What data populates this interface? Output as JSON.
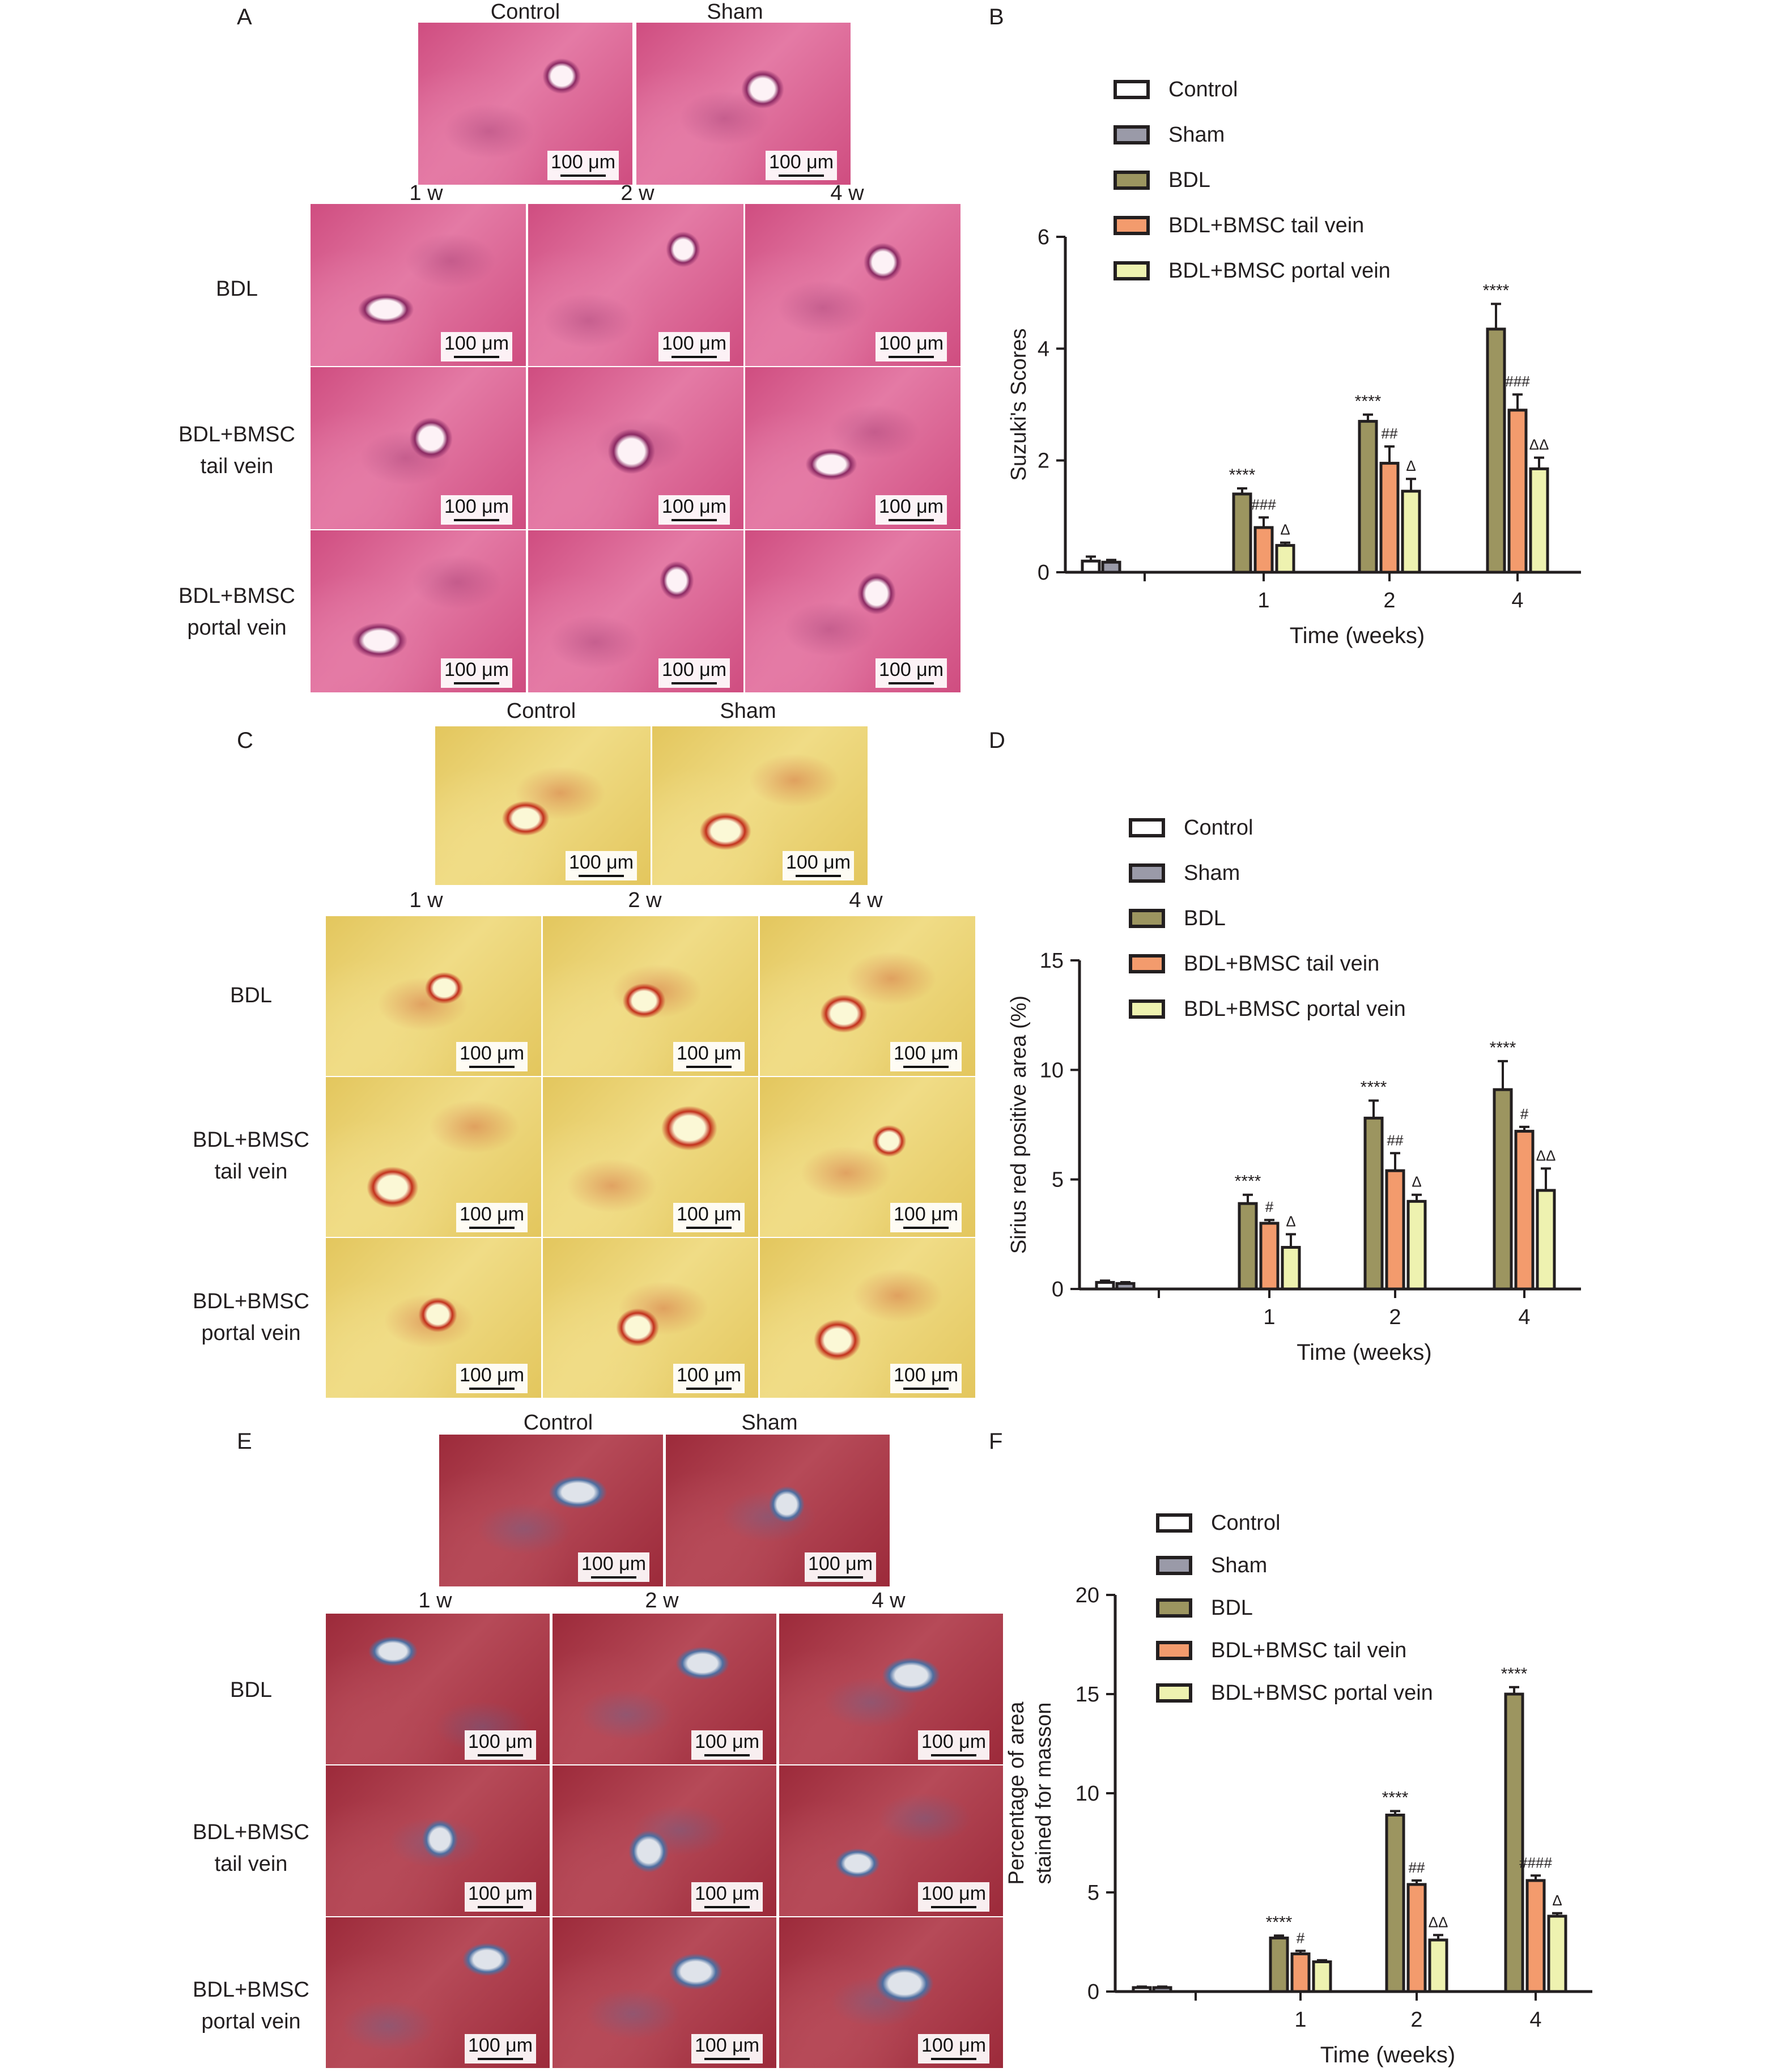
{
  "panel_letters": [
    "A",
    "B",
    "C",
    "D",
    "E",
    "F"
  ],
  "micrograph_panels": [
    {
      "letter": "A",
      "top_labels": [
        "Control",
        "Sham"
      ],
      "column_labels": [
        "1 w",
        "2 w",
        "4 w"
      ],
      "row_labels": [
        [
          "BDL"
        ],
        [
          "BDL+BMSC",
          "tail vein"
        ],
        [
          "BDL+BMSC",
          "portal vein"
        ]
      ],
      "scale_label": "100 μm",
      "stain_colors": {
        "base": "#cf4d80",
        "light": "#e47aa5",
        "dark": "#8b2a63",
        "lumen": "#fdf2f6"
      }
    },
    {
      "letter": "C",
      "top_labels": [
        "Control",
        "Sham"
      ],
      "column_labels": [
        "1 w",
        "2 w",
        "4 w"
      ],
      "row_labels": [
        [
          "BDL"
        ],
        [
          "BDL+BMSC",
          "tail vein"
        ],
        [
          "BDL+BMSC",
          "portal vein"
        ]
      ],
      "scale_label": "100 μm",
      "stain_colors": {
        "base": "#e3c65d",
        "light": "#f0dc86",
        "dark": "#c2301c",
        "lumen": "#fbf8d6"
      }
    },
    {
      "letter": "E",
      "top_labels": [
        "Control",
        "Sham"
      ],
      "column_labels": [
        "1 w",
        "2 w",
        "4 w"
      ],
      "row_labels": [
        [
          "BDL"
        ],
        [
          "BDL+BMSC",
          "tail vein"
        ],
        [
          "BDL+BMSC",
          "portal vein"
        ]
      ],
      "scale_label": "100 μm",
      "stain_colors": {
        "base": "#9c2a3a",
        "light": "#b64a58",
        "dark": "#4d6ea0",
        "lumen": "#dfe3ea"
      }
    }
  ],
  "legend_labels": [
    "Control",
    "Sham",
    "BDL",
    "BDL+BMSC tail vein",
    "BDL+BMSC portal vein"
  ],
  "series_colors": [
    "#ffffff",
    "#9a9aa8",
    "#9c9560",
    "#f39b6d",
    "#eef2b0"
  ],
  "chart_data": [
    {
      "type": "bar",
      "panel": "B",
      "ylabel": "Suzuki's Scores",
      "xlabel": "Time (weeks)",
      "ylim": [
        0,
        6
      ],
      "yticks": [
        0,
        2,
        4,
        6
      ],
      "categories": [
        "1",
        "2",
        "4"
      ],
      "baseline": {
        "series": [
          "Control",
          "Sham"
        ],
        "values": [
          0.2,
          0.18
        ],
        "errors": [
          0.08,
          0.04
        ]
      },
      "series": [
        {
          "name": "BDL",
          "values": [
            1.4,
            2.7,
            4.35
          ],
          "errors": [
            0.1,
            0.12,
            0.45
          ],
          "marks": [
            "****",
            "****",
            "****"
          ]
        },
        {
          "name": "BDL+BMSC tail vein",
          "values": [
            0.8,
            1.95,
            2.9
          ],
          "errors": [
            0.18,
            0.3,
            0.28
          ],
          "marks": [
            "###",
            "##",
            "###"
          ]
        },
        {
          "name": "BDL+BMSC portal vein",
          "values": [
            0.48,
            1.45,
            1.85
          ],
          "errors": [
            0.05,
            0.22,
            0.2
          ],
          "marks": [
            "Δ",
            "Δ",
            "ΔΔ"
          ]
        }
      ]
    },
    {
      "type": "bar",
      "panel": "D",
      "ylabel": "Sirius red positive area (%)",
      "xlabel": "Time (weeks)",
      "ylim": [
        0,
        15
      ],
      "yticks": [
        0,
        5,
        10,
        15
      ],
      "categories": [
        "1",
        "2",
        "4"
      ],
      "baseline": {
        "series": [
          "Control",
          "Sham"
        ],
        "values": [
          0.3,
          0.25
        ],
        "errors": [
          0.08,
          0.06
        ]
      },
      "series": [
        {
          "name": "BDL",
          "values": [
            3.9,
            7.8,
            9.1
          ],
          "errors": [
            0.4,
            0.8,
            1.3
          ],
          "marks": [
            "****",
            "****",
            "****"
          ]
        },
        {
          "name": "BDL+BMSC tail vein",
          "values": [
            3.0,
            5.4,
            7.2
          ],
          "errors": [
            0.15,
            0.8,
            0.2
          ],
          "marks": [
            "#",
            "##",
            "#"
          ]
        },
        {
          "name": "BDL+BMSC portal vein",
          "values": [
            1.9,
            4.0,
            4.5
          ],
          "errors": [
            0.6,
            0.3,
            1.0
          ],
          "marks": [
            "Δ",
            "Δ",
            "ΔΔ"
          ]
        }
      ]
    },
    {
      "type": "bar",
      "panel": "F",
      "ylabel": "Percentage of area stained for masson",
      "ylabel_lines": [
        "Percentage of area",
        "stained for masson"
      ],
      "xlabel": "Time (weeks)",
      "ylim": [
        0,
        20
      ],
      "yticks": [
        0,
        5,
        10,
        15,
        20
      ],
      "categories": [
        "1",
        "2",
        "4"
      ],
      "baseline": {
        "series": [
          "Control",
          "Sham"
        ],
        "values": [
          0.2,
          0.2
        ],
        "errors": [
          0.05,
          0.05
        ]
      },
      "series": [
        {
          "name": "BDL",
          "values": [
            2.7,
            8.9,
            15.0
          ],
          "errors": [
            0.12,
            0.2,
            0.35
          ],
          "marks": [
            "****",
            "****",
            "****"
          ]
        },
        {
          "name": "BDL+BMSC tail vein",
          "values": [
            1.9,
            5.4,
            5.6
          ],
          "errors": [
            0.15,
            0.2,
            0.25
          ],
          "marks": [
            "#",
            "##",
            "####"
          ]
        },
        {
          "name": "BDL+BMSC portal vein",
          "values": [
            1.5,
            2.6,
            3.8
          ],
          "errors": [
            0.08,
            0.25,
            0.15
          ],
          "marks": [
            "",
            "ΔΔ",
            "Δ"
          ]
        }
      ]
    }
  ]
}
